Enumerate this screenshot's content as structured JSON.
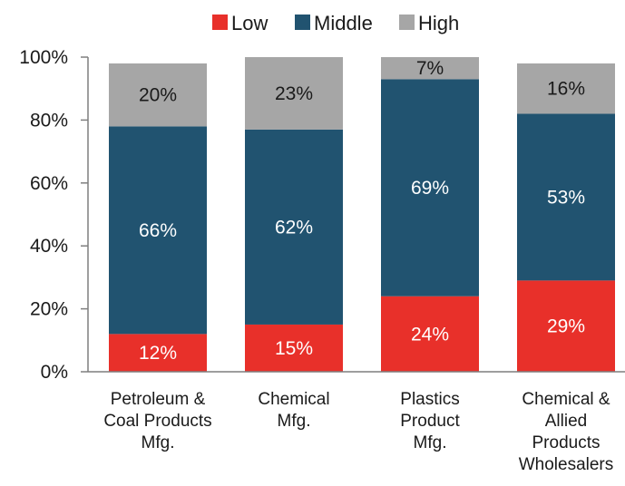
{
  "chart_data": {
    "type": "bar",
    "stacked": true,
    "categories": [
      "Petroleum & Coal Products Mfg.",
      "Chemical Mfg.",
      "Plastics Product Mfg.",
      "Chemical & Allied Products Wholesalers"
    ],
    "category_lines": [
      [
        "Petroleum &",
        "Coal Products",
        "Mfg."
      ],
      [
        "Chemical",
        "Mfg."
      ],
      [
        "Plastics",
        "Product",
        "Mfg."
      ],
      [
        "Chemical &",
        "Allied",
        "Products",
        "Wholesalers"
      ]
    ],
    "series": [
      {
        "name": "Low",
        "color": "#e8302a",
        "values": [
          12,
          15,
          24,
          29
        ],
        "labels": [
          "12%",
          "15%",
          "24%",
          "29%"
        ]
      },
      {
        "name": "Middle",
        "color": "#215370",
        "values": [
          66,
          62,
          69,
          53
        ],
        "labels": [
          "66%",
          "62%",
          "69%",
          "53%"
        ]
      },
      {
        "name": "High",
        "color": "#a6a6a6",
        "values": [
          20,
          23,
          7,
          16
        ],
        "labels": [
          "20%",
          "23%",
          "7%",
          "16%"
        ]
      }
    ],
    "ylim": [
      0,
      100
    ],
    "yticks": [
      0,
      20,
      40,
      60,
      80,
      100
    ],
    "ytick_labels": [
      "0%",
      "20%",
      "40%",
      "60%",
      "80%",
      "100%"
    ],
    "title": "",
    "xlabel": "",
    "ylabel": "",
    "legend": "top-center",
    "grid": false
  }
}
